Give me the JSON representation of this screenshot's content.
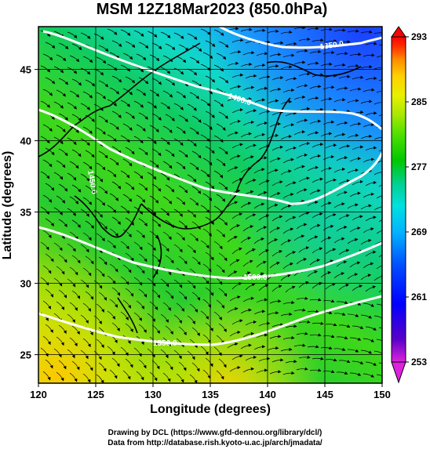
{
  "title": "MSM 12Z18Mar2023 (850.0hPa)",
  "x_axis": {
    "label": "Longitude (degrees)",
    "min": 120,
    "max": 150,
    "ticks": [
      "120",
      "125",
      "130",
      "135",
      "140",
      "145",
      "150"
    ]
  },
  "y_axis": {
    "label": "Latitude  (degrees)",
    "min": 23,
    "max": 48,
    "ticks": [
      "25",
      "30",
      "35",
      "40",
      "45"
    ]
  },
  "colorbar": {
    "min": 253,
    "max": 293,
    "labels": [
      "293",
      "285",
      "277",
      "269",
      "261",
      "253"
    ],
    "colors": [
      "#dd22dd",
      "#5a00c8",
      "#0000ff",
      "#0050ff",
      "#00b4ff",
      "#00e0e0",
      "#00d090",
      "#00c800",
      "#50e000",
      "#a8e800",
      "#e8f000",
      "#ffd000",
      "#ff8c00",
      "#ff3000",
      "#ff0000"
    ]
  },
  "contours": [
    {
      "label": "1350.0",
      "color": "#ffffff"
    },
    {
      "label": "1400.0",
      "color": "#ffffff"
    },
    {
      "label": "1450.0",
      "color": "#ffffff"
    },
    {
      "label": "1500.0",
      "color": "#ffffff"
    },
    {
      "label": "1550.0",
      "color": "#ffffff"
    }
  ],
  "credits": {
    "line1": "Drawing by DCL (https://www.gfd-dennou.org/library/dcl/)",
    "line2": "Data from http://database.rish.kyoto-u.ac.jp/arch/jmadata/"
  }
}
